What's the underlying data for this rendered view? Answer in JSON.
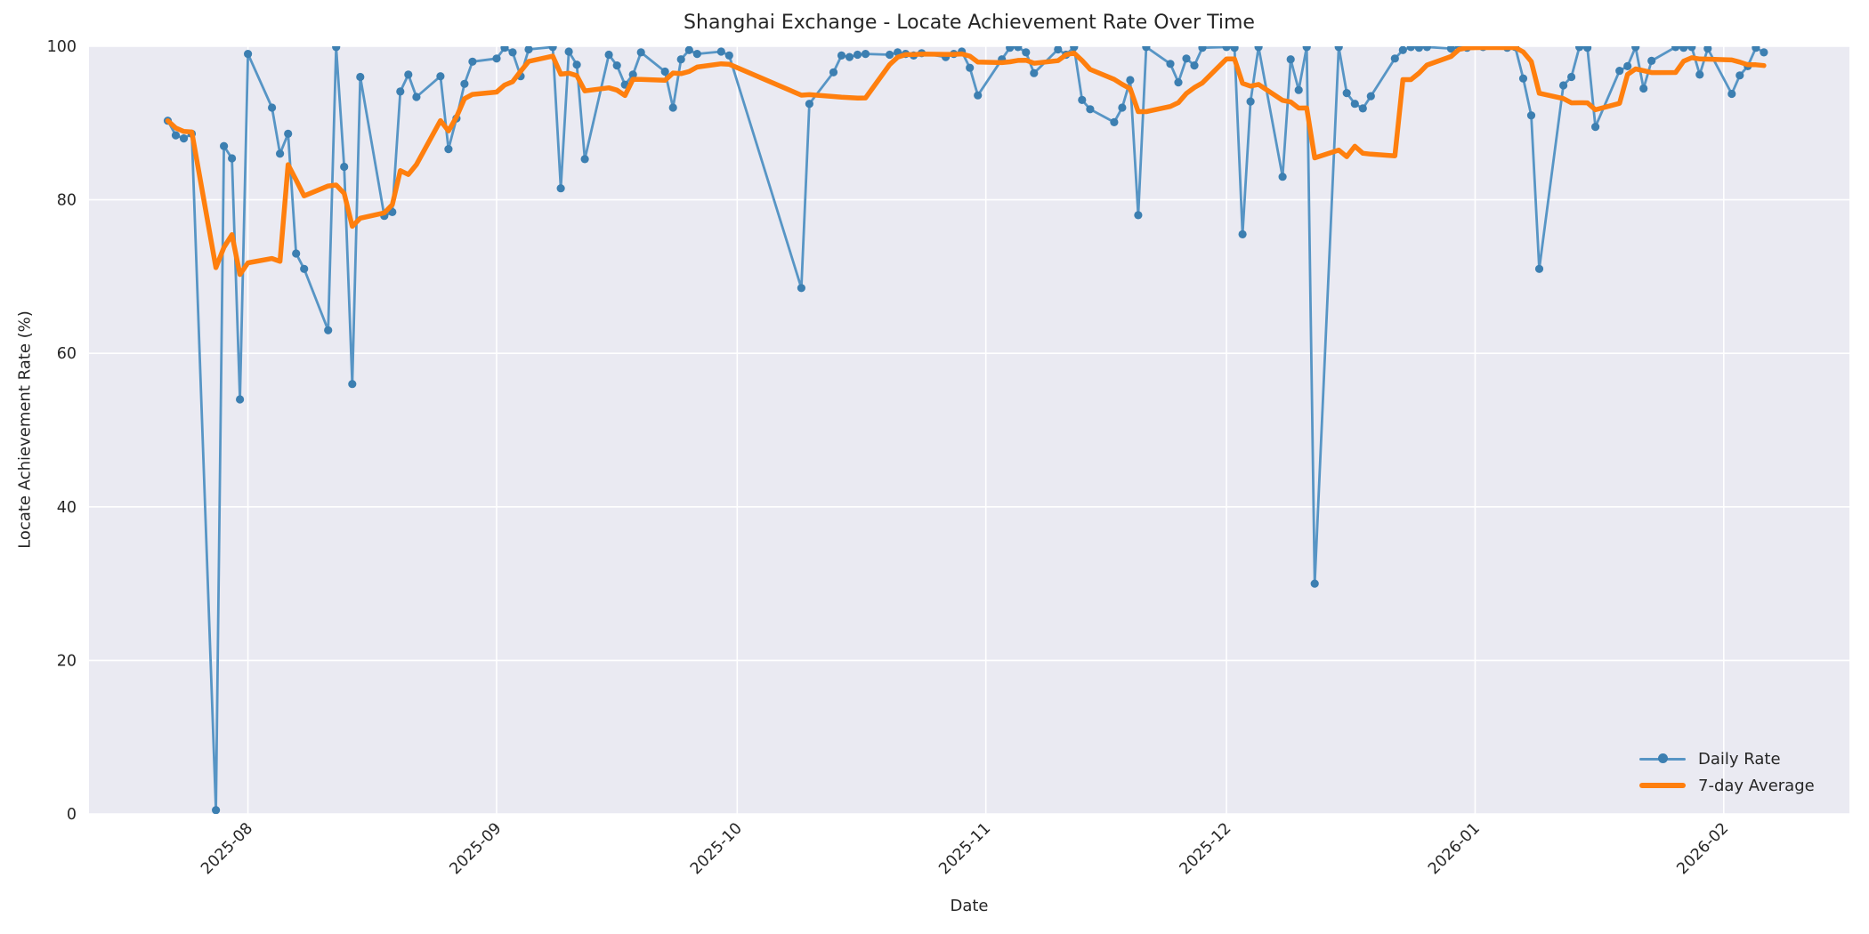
{
  "chart_data": {
    "type": "line",
    "title": "Shanghai Exchange - Locate Achievement Rate Over Time",
    "xlabel": "Date",
    "ylabel": "Locate Achievement Rate (%)",
    "ylim": [
      0,
      100
    ],
    "yticks": [
      0,
      20,
      40,
      60,
      80,
      100
    ],
    "xticks": [
      "2025-08",
      "2025-09",
      "2025-10",
      "2025-11",
      "2025-12",
      "2026-01",
      "2026-02"
    ],
    "grid": true,
    "legend_position": "lower right",
    "plot_background": "#eaeaf2",
    "grid_color": "#ffffff",
    "text_color": "#262626",
    "series": [
      {
        "name": "Daily Rate",
        "style": "line-with-markers",
        "line_color": "#5795c5",
        "marker_color": "#3c7fb1",
        "points": [
          [
            "2025-07-22",
            90.3
          ],
          [
            "2025-07-23",
            88.4
          ],
          [
            "2025-07-24",
            88.0
          ],
          [
            "2025-07-25",
            88.6
          ],
          [
            "2025-07-28",
            0.5
          ],
          [
            "2025-07-29",
            87.0
          ],
          [
            "2025-07-30",
            85.4
          ],
          [
            "2025-07-31",
            54.0
          ],
          [
            "2025-08-01",
            99.0
          ],
          [
            "2025-08-04",
            92.0
          ],
          [
            "2025-08-05",
            86.0
          ],
          [
            "2025-08-06",
            88.6
          ],
          [
            "2025-08-07",
            73.0
          ],
          [
            "2025-08-08",
            71.0
          ],
          [
            "2025-08-11",
            63.0
          ],
          [
            "2025-08-12",
            99.9
          ],
          [
            "2025-08-13",
            84.3
          ],
          [
            "2025-08-14",
            56.0
          ],
          [
            "2025-08-15",
            96.0
          ],
          [
            "2025-08-18",
            77.9
          ],
          [
            "2025-08-19",
            78.4
          ],
          [
            "2025-08-20",
            94.1
          ],
          [
            "2025-08-21",
            96.3
          ],
          [
            "2025-08-22",
            93.4
          ],
          [
            "2025-08-25",
            96.1
          ],
          [
            "2025-08-26",
            86.6
          ],
          [
            "2025-08-27",
            90.6
          ],
          [
            "2025-08-28",
            95.1
          ],
          [
            "2025-08-29",
            98.0
          ],
          [
            "2025-09-01",
            98.4
          ],
          [
            "2025-09-02",
            99.8
          ],
          [
            "2025-09-03",
            99.2
          ],
          [
            "2025-09-04",
            96.1
          ],
          [
            "2025-09-05",
            99.6
          ],
          [
            "2025-09-08",
            99.9
          ],
          [
            "2025-09-09",
            81.5
          ],
          [
            "2025-09-10",
            99.3
          ],
          [
            "2025-09-11",
            97.6
          ],
          [
            "2025-09-12",
            85.3
          ],
          [
            "2025-09-15",
            98.9
          ],
          [
            "2025-09-16",
            97.5
          ],
          [
            "2025-09-17",
            95.0
          ],
          [
            "2025-09-18",
            96.3
          ],
          [
            "2025-09-19",
            99.2
          ],
          [
            "2025-09-22",
            96.7
          ],
          [
            "2025-09-23",
            92.0
          ],
          [
            "2025-09-24",
            98.3
          ],
          [
            "2025-09-25",
            99.5
          ],
          [
            "2025-09-26",
            99.0
          ],
          [
            "2025-09-29",
            99.3
          ],
          [
            "2025-09-30",
            98.8
          ],
          [
            "2025-10-09",
            68.5
          ],
          [
            "2025-10-10",
            92.5
          ],
          [
            "2025-10-13",
            96.6
          ],
          [
            "2025-10-14",
            98.8
          ],
          [
            "2025-10-15",
            98.6
          ],
          [
            "2025-10-16",
            98.9
          ],
          [
            "2025-10-17",
            99.0
          ],
          [
            "2025-10-20",
            98.9
          ],
          [
            "2025-10-21",
            99.2
          ],
          [
            "2025-10-22",
            99.0
          ],
          [
            "2025-10-23",
            98.8
          ],
          [
            "2025-10-24",
            99.1
          ],
          [
            "2025-10-27",
            98.6
          ],
          [
            "2025-10-28",
            99.0
          ],
          [
            "2025-10-29",
            99.3
          ],
          [
            "2025-10-30",
            97.2
          ],
          [
            "2025-10-31",
            93.6
          ],
          [
            "2025-11-03",
            98.3
          ],
          [
            "2025-11-04",
            99.8
          ],
          [
            "2025-11-05",
            99.9
          ],
          [
            "2025-11-06",
            99.2
          ],
          [
            "2025-11-07",
            96.5
          ],
          [
            "2025-11-10",
            99.6
          ],
          [
            "2025-11-11",
            98.9
          ],
          [
            "2025-11-12",
            99.9
          ],
          [
            "2025-11-13",
            93.0
          ],
          [
            "2025-11-14",
            91.8
          ],
          [
            "2025-11-17",
            90.1
          ],
          [
            "2025-11-18",
            92.0
          ],
          [
            "2025-11-19",
            95.6
          ],
          [
            "2025-11-20",
            78.0
          ],
          [
            "2025-11-21",
            99.9
          ],
          [
            "2025-11-24",
            97.7
          ],
          [
            "2025-11-25",
            95.3
          ],
          [
            "2025-11-26",
            98.4
          ],
          [
            "2025-11-27",
            97.5
          ],
          [
            "2025-11-28",
            99.8
          ],
          [
            "2025-12-01",
            99.9
          ],
          [
            "2025-12-02",
            99.8
          ],
          [
            "2025-12-03",
            75.5
          ],
          [
            "2025-12-04",
            92.8
          ],
          [
            "2025-12-05",
            99.9
          ],
          [
            "2025-12-08",
            83.0
          ],
          [
            "2025-12-09",
            98.3
          ],
          [
            "2025-12-10",
            94.3
          ],
          [
            "2025-12-11",
            99.9
          ],
          [
            "2025-12-12",
            30.0
          ],
          [
            "2025-12-15",
            99.9
          ],
          [
            "2025-12-16",
            93.9
          ],
          [
            "2025-12-17",
            92.5
          ],
          [
            "2025-12-18",
            91.9
          ],
          [
            "2025-12-19",
            93.5
          ],
          [
            "2025-12-22",
            98.4
          ],
          [
            "2025-12-23",
            99.5
          ],
          [
            "2025-12-24",
            99.9
          ],
          [
            "2025-12-25",
            99.8
          ],
          [
            "2025-12-26",
            99.9
          ],
          [
            "2025-12-29",
            99.7
          ],
          [
            "2025-12-30",
            99.9
          ],
          [
            "2025-12-31",
            99.8
          ],
          [
            "2026-01-02",
            99.9
          ],
          [
            "2026-01-05",
            99.8
          ],
          [
            "2026-01-06",
            99.9
          ],
          [
            "2026-01-07",
            95.8
          ],
          [
            "2026-01-08",
            91.0
          ],
          [
            "2026-01-09",
            71.0
          ],
          [
            "2026-01-12",
            94.9
          ],
          [
            "2026-01-13",
            96.0
          ],
          [
            "2026-01-14",
            99.9
          ],
          [
            "2026-01-15",
            99.8
          ],
          [
            "2026-01-16",
            89.5
          ],
          [
            "2026-01-19",
            96.8
          ],
          [
            "2026-01-20",
            97.4
          ],
          [
            "2026-01-21",
            99.9
          ],
          [
            "2026-01-22",
            94.5
          ],
          [
            "2026-01-23",
            98.1
          ],
          [
            "2026-01-26",
            99.9
          ],
          [
            "2026-01-27",
            99.8
          ],
          [
            "2026-01-28",
            99.9
          ],
          [
            "2026-01-29",
            96.3
          ],
          [
            "2026-01-30",
            99.7
          ],
          [
            "2026-02-02",
            93.8
          ],
          [
            "2026-02-03",
            96.2
          ],
          [
            "2026-02-04",
            97.4
          ],
          [
            "2026-02-05",
            99.8
          ],
          [
            "2026-02-06",
            99.2
          ]
        ]
      },
      {
        "name": "7-day Average",
        "style": "thick-line",
        "line_color": "#ff7f0e",
        "derived_from": "Daily Rate",
        "rolling_window": 7,
        "min_periods": 1
      }
    ]
  }
}
